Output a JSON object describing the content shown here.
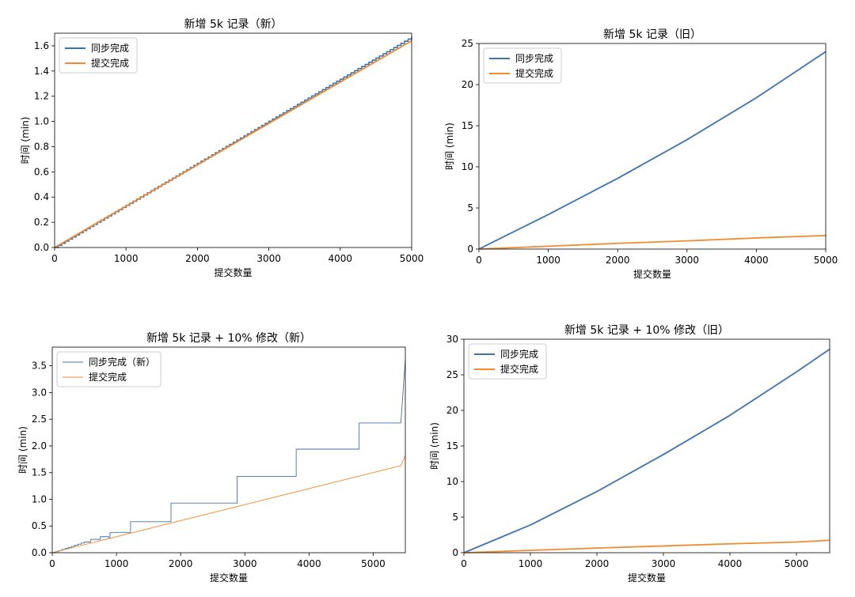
{
  "colors": {
    "sync": "#3d72b0",
    "submit": "#f28a30",
    "axis": "#000000",
    "legend_border": "#cccccc"
  },
  "chart_data": [
    {
      "id": "new-5k",
      "type": "line",
      "title": "新增 5k 记录（新）",
      "xlabel": "提交数量",
      "ylabel": "时间 (min)",
      "xlim": [
        0,
        5000
      ],
      "ylim": [
        0,
        1.7
      ],
      "xticks": [
        0,
        1000,
        2000,
        3000,
        4000,
        5000
      ],
      "xtick_labels": [
        "0",
        "1000",
        "2000",
        "3000",
        "4000",
        "5000"
      ],
      "yticks": [
        0,
        0.2,
        0.4,
        0.6,
        0.8,
        1.0,
        1.2,
        1.4,
        1.6
      ],
      "ytick_labels": [
        "0.0",
        "0.2",
        "0.4",
        "0.6",
        "0.8",
        "1.0",
        "1.2",
        "1.4",
        "1.6"
      ],
      "legend_position": "top-left",
      "series": [
        {
          "name": "同步完成",
          "color_key": "sync",
          "style": "step",
          "step_size": 50,
          "x_end": 5000,
          "y_end": 1.67
        },
        {
          "name": "提交完成",
          "color_key": "submit",
          "style": "line",
          "x": [
            0,
            5000
          ],
          "y": [
            0,
            1.64
          ]
        }
      ]
    },
    {
      "id": "old-5k",
      "type": "line",
      "title": "新增 5k 记录（旧）",
      "xlabel": "提交数量",
      "ylabel": "时间 (min)",
      "xlim": [
        0,
        5000
      ],
      "ylim": [
        0,
        25
      ],
      "xticks": [
        0,
        1000,
        2000,
        3000,
        4000,
        5000
      ],
      "xtick_labels": [
        "0",
        "1000",
        "2000",
        "3000",
        "4000",
        "5000"
      ],
      "yticks": [
        0,
        5,
        10,
        15,
        20,
        25
      ],
      "ytick_labels": [
        "0",
        "5",
        "10",
        "15",
        "20",
        "25"
      ],
      "legend_position": "top-left",
      "series": [
        {
          "name": "同步完成",
          "color_key": "sync",
          "style": "line",
          "x": [
            0,
            1000,
            2000,
            3000,
            4000,
            5000
          ],
          "y": [
            0,
            4.2,
            8.6,
            13.3,
            18.4,
            24.0
          ]
        },
        {
          "name": "提交完成",
          "color_key": "submit",
          "style": "line",
          "x": [
            0,
            1000,
            2000,
            3000,
            4000,
            5000
          ],
          "y": [
            0,
            0.35,
            0.7,
            1.0,
            1.35,
            1.65
          ]
        }
      ]
    },
    {
      "id": "new-5k-mod",
      "type": "line",
      "title": "新增 5k 记录 + 10% 修改（新）",
      "xlabel": "提交数量",
      "ylabel": "时间 (min)",
      "xlim": [
        0,
        5500
      ],
      "ylim": [
        0,
        3.85
      ],
      "xticks": [
        0,
        1000,
        2000,
        3000,
        4000,
        5000
      ],
      "xtick_labels": [
        "0",
        "1000",
        "2000",
        "3000",
        "4000",
        "5000"
      ],
      "yticks": [
        0,
        0.5,
        1.0,
        1.5,
        2.0,
        2.5,
        3.0,
        3.5
      ],
      "ytick_labels": [
        "0.0",
        "0.5",
        "1.0",
        "1.5",
        "2.0",
        "2.5",
        "3.0",
        "3.5"
      ],
      "legend_position": "top-left",
      "series": [
        {
          "name": "同步完成（新）",
          "color_key": "sync",
          "style": "line",
          "thin": true,
          "x": [
            0,
            50,
            50,
            100,
            100,
            150,
            150,
            200,
            200,
            250,
            250,
            300,
            300,
            350,
            350,
            400,
            400,
            450,
            450,
            500,
            500,
            600,
            600,
            750,
            750,
            880,
            880,
            900,
            900,
            1220,
            1220,
            1850,
            1850,
            2880,
            2880,
            3800,
            3800,
            4780,
            4780,
            5430,
            5430,
            5500
          ],
          "y": [
            0,
            0,
            0.02,
            0.02,
            0.04,
            0.04,
            0.06,
            0.06,
            0.08,
            0.08,
            0.1,
            0.1,
            0.12,
            0.12,
            0.14,
            0.14,
            0.16,
            0.16,
            0.18,
            0.18,
            0.2,
            0.2,
            0.25,
            0.25,
            0.3,
            0.3,
            0.27,
            0.27,
            0.38,
            0.38,
            0.58,
            0.58,
            0.93,
            0.93,
            1.43,
            1.43,
            1.94,
            1.94,
            2.43,
            2.43,
            2.43,
            3.62
          ]
        },
        {
          "name": "提交完成",
          "color_key": "submit",
          "style": "line",
          "thin": true,
          "x": [
            0,
            5430,
            5500
          ],
          "y": [
            0,
            1.63,
            1.82
          ]
        }
      ]
    },
    {
      "id": "old-5k-mod",
      "type": "line",
      "title": "新增 5k 记录 + 10% 修改（旧）",
      "xlabel": "提交数量",
      "ylabel": "时间 (min)",
      "xlim": [
        0,
        5500
      ],
      "ylim": [
        0,
        30
      ],
      "xticks": [
        0,
        1000,
        2000,
        3000,
        4000,
        5000
      ],
      "xtick_labels": [
        "0",
        "1000",
        "2000",
        "3000",
        "4000",
        "5000"
      ],
      "yticks": [
        0,
        5,
        10,
        15,
        20,
        25,
        30
      ],
      "ytick_labels": [
        "0",
        "5",
        "10",
        "15",
        "20",
        "25",
        "30"
      ],
      "legend_position": "top-left",
      "series": [
        {
          "name": "同步完成",
          "color_key": "sync",
          "style": "line",
          "x": [
            0,
            1000,
            2000,
            3000,
            4000,
            5000,
            5500
          ],
          "y": [
            0,
            3.9,
            8.6,
            13.8,
            19.3,
            25.4,
            28.6
          ]
        },
        {
          "name": "提交完成",
          "color_key": "submit",
          "style": "line",
          "x": [
            0,
            1000,
            2000,
            3000,
            4000,
            5000,
            5500
          ],
          "y": [
            0,
            0.33,
            0.65,
            0.95,
            1.25,
            1.5,
            1.75
          ]
        }
      ]
    }
  ]
}
